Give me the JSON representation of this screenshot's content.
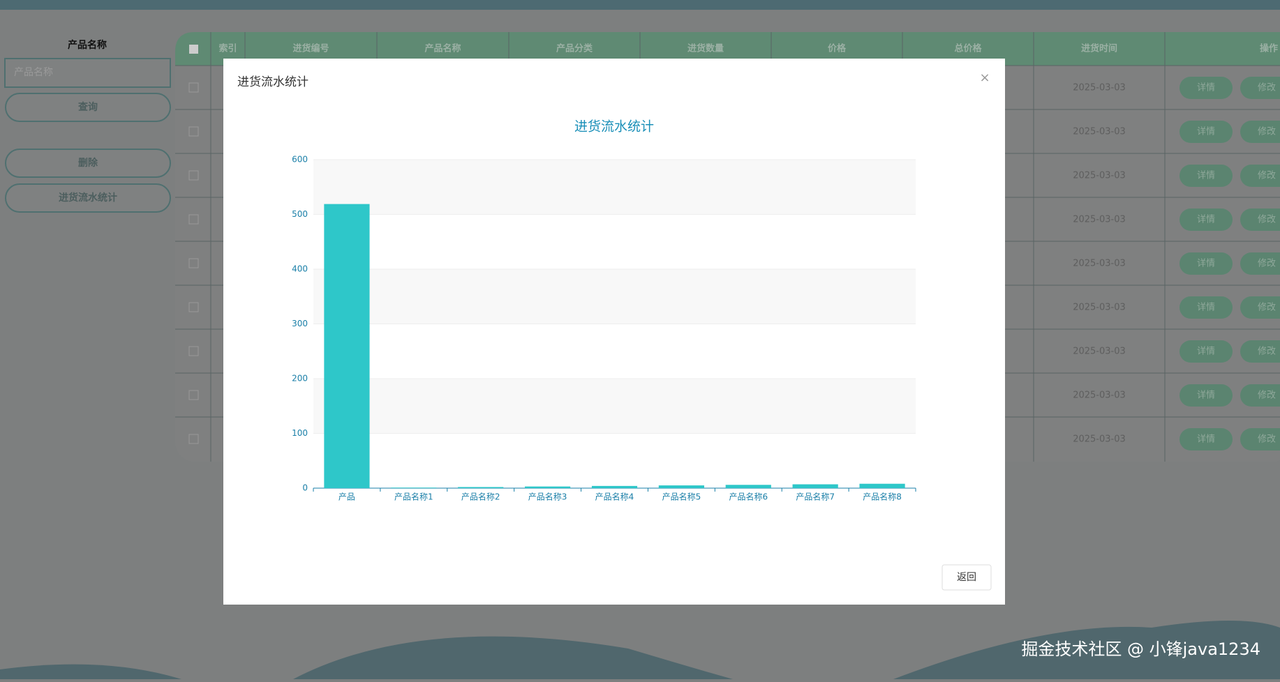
{
  "sidebar": {
    "label": "产品名称",
    "placeholder": "产品名称",
    "buttons": [
      "查询",
      "删除",
      "进货流水统计"
    ]
  },
  "table": {
    "columns": [
      "索引",
      "进货编号",
      "产品名称",
      "产品分类",
      "进货数量",
      "价格",
      "总价格",
      "进货时间",
      "操作"
    ],
    "rows": [
      [
        "2025-03-03",
        "详情",
        "修改"
      ],
      [
        "2025-03-03",
        "详情",
        "修改"
      ],
      [
        "2025-03-03",
        "详情",
        "修改"
      ],
      [
        "2025-03-03",
        "详情",
        "修改"
      ],
      [
        "2025-03-03",
        "详情",
        "修改"
      ],
      [
        "2025-03-03",
        "详情",
        "修改"
      ],
      [
        "2025-03-03",
        "详情",
        "修改"
      ],
      [
        "2025-03-03",
        "详情",
        "修改"
      ],
      [
        "2025-03-03",
        "详情",
        "修改"
      ]
    ]
  },
  "modal": {
    "title": "进货流水统计",
    "close": "×",
    "button": "返回"
  },
  "chart_data": {
    "type": "bar",
    "title": "进货流水统计",
    "categories": [
      "产品",
      "产品名称1",
      "产品名称2",
      "产品名称3",
      "产品名称4",
      "产品名称5",
      "产品名称6",
      "产品名称7",
      "产品名称8"
    ],
    "values": [
      519,
      1,
      2,
      3,
      4,
      5,
      6,
      7,
      8
    ],
    "color": "#2ec7c9",
    "ylim": [
      0,
      600
    ],
    "yticks": [
      0,
      100,
      200,
      300,
      400,
      500,
      600
    ],
    "grid": true
  },
  "watermark": "掘金技术社区 @ 小锋java1234"
}
